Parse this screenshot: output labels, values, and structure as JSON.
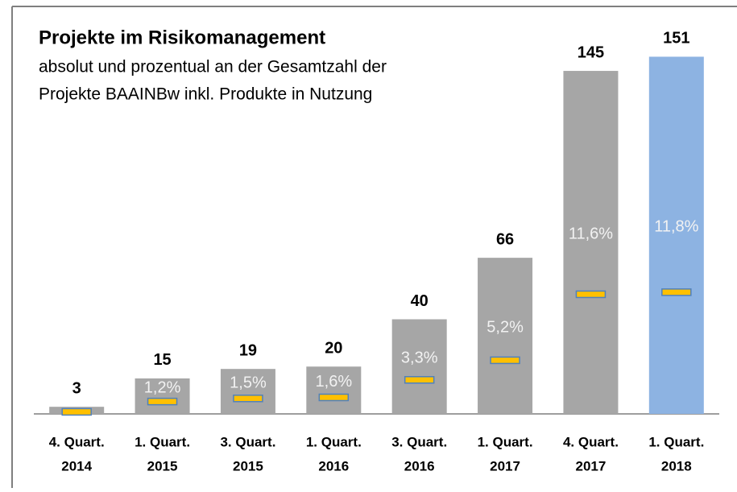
{
  "chart_data": {
    "type": "bar",
    "title": "Projekte im Risikomanagement",
    "subtitle": [
      "absolut und prozentual an der Gesamtzahl der",
      "Projekte BAAINBw inkl. Produkte in Nutzung"
    ],
    "categories": [
      [
        "4. Quart.",
        "2014"
      ],
      [
        "1. Quart.",
        "2015"
      ],
      [
        "3. Quart.",
        "2015"
      ],
      [
        "1. Quart.",
        "2016"
      ],
      [
        "3. Quart.",
        "2016"
      ],
      [
        "1. Quart.",
        "2017"
      ],
      [
        "4. Quart.",
        "2017"
      ],
      [
        "1. Quart.",
        "2018"
      ]
    ],
    "series": [
      {
        "values": [
          3,
          15,
          19,
          20,
          40,
          66,
          145,
          151
        ],
        "colors": [
          "#a6a6a6",
          "#a6a6a6",
          "#a6a6a6",
          "#a6a6a6",
          "#a6a6a6",
          "#a6a6a6",
          "#a6a6a6",
          "#8db3e2"
        ]
      },
      {
        "axis": "y2",
        "color": "#ffc000",
        "values": [
          0.2,
          1.2,
          1.5,
          1.6,
          3.3,
          5.2,
          11.6,
          11.8
        ],
        "value_labels": [
          null,
          "1,2%",
          "1,5%",
          "1,6%",
          "3,3%",
          "5,2%",
          "11,6%",
          "11,8%"
        ]
      }
    ],
    "ylim": [
      0,
      160
    ],
    "y2lim": [
      0,
      36.7
    ]
  }
}
